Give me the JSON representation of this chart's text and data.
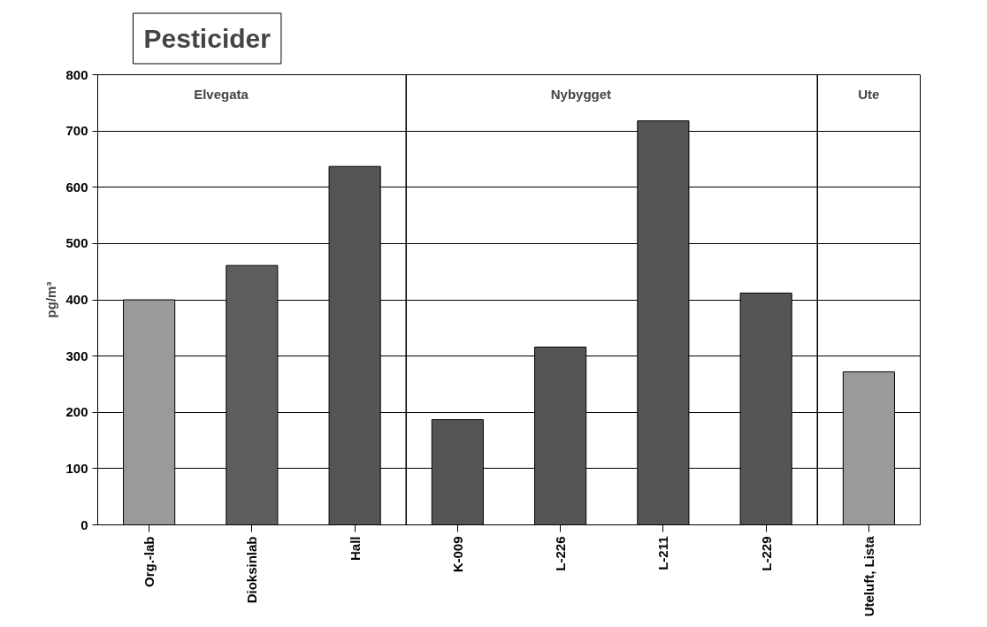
{
  "chart_data": {
    "type": "bar",
    "title": "Pesticider",
    "ylabel": "pg/m³",
    "categories": [
      "Org.-lab",
      "Dioksinlab",
      "Hall",
      "K-009",
      "L-226",
      "L-211",
      "L-229",
      "Uteluft, Lista"
    ],
    "values": [
      400,
      461,
      637,
      187,
      316,
      718,
      412,
      272
    ],
    "colors": [
      "#9a9a9a",
      "#5e5e5e",
      "#555555",
      "#555555",
      "#555555",
      "#555555",
      "#555555",
      "#9a9a9a"
    ],
    "ylim": [
      0,
      800
    ],
    "yticks": [
      0,
      100,
      200,
      300,
      400,
      500,
      600,
      700,
      800
    ],
    "grid": "y",
    "annotations": [
      "Elvegata",
      "Nybygget",
      "Ute"
    ]
  }
}
